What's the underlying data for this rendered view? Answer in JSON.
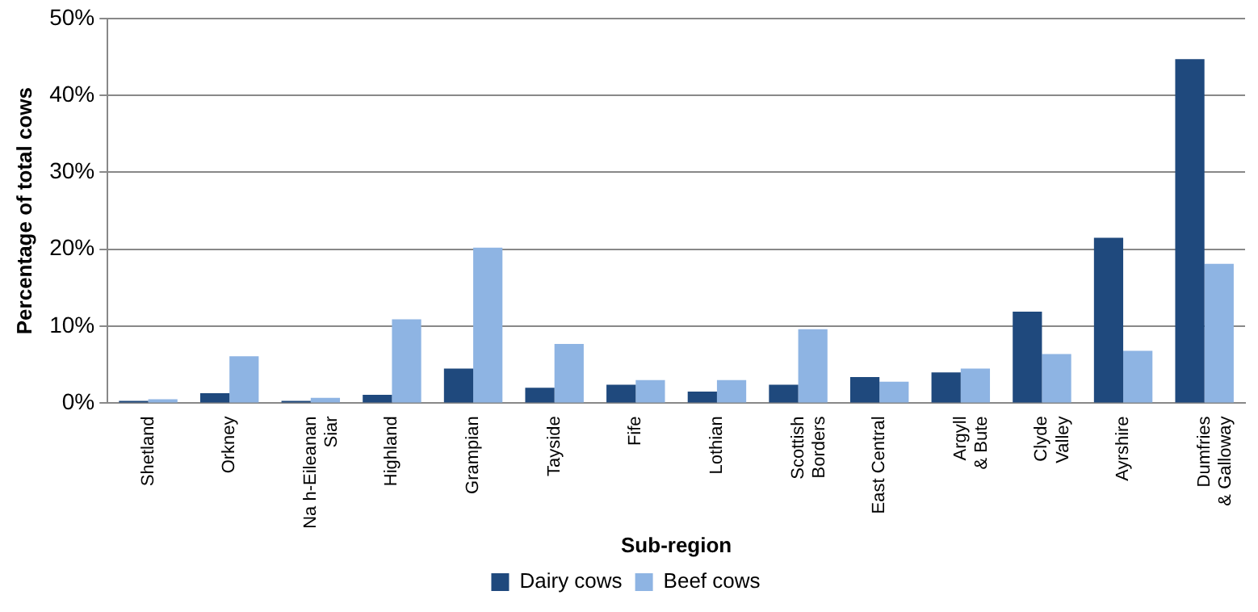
{
  "chart_data": {
    "type": "bar",
    "xlabel": "Sub-region",
    "ylabel": "Percentage of total cows",
    "categories": [
      "Shetland",
      "Orkney",
      "Na h-Eileanan\nSiar",
      "Highland",
      "Grampian",
      "Tayside",
      "Fife",
      "Lothian",
      "Scottish\nBorders",
      "East Central",
      "Argyll\n& Bute",
      "Clyde\nValley",
      "Ayrshire",
      "Dumfries\n& Galloway"
    ],
    "series": [
      {
        "name": "Dairy cows",
        "color": "#1f497d",
        "values": [
          0.3,
          1.3,
          0.3,
          1.1,
          4.5,
          2.0,
          2.4,
          1.5,
          2.4,
          3.4,
          4.0,
          11.9,
          21.5,
          44.7
        ]
      },
      {
        "name": "Beef cows",
        "color": "#8eb4e3",
        "values": [
          0.5,
          6.1,
          0.7,
          10.9,
          20.2,
          7.7,
          3.0,
          3.0,
          9.6,
          2.8,
          4.5,
          6.4,
          6.8,
          18.1
        ]
      }
    ],
    "ylim": [
      0,
      50
    ],
    "yticks": [
      {
        "value": 0,
        "label": "0%"
      },
      {
        "value": 10,
        "label": "10%"
      },
      {
        "value": 20,
        "label": "20%"
      },
      {
        "value": 30,
        "label": "30%"
      },
      {
        "value": 40,
        "label": "40%"
      },
      {
        "value": 50,
        "label": "50%"
      }
    ],
    "grid": "y",
    "legend": "bottom"
  }
}
